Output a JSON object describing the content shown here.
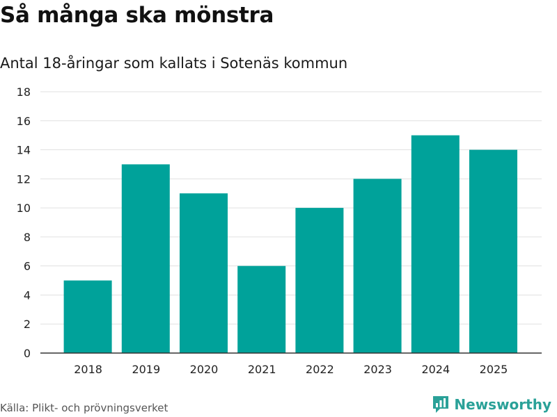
{
  "header": {
    "title": "Så många ska mönstra",
    "subtitle": "Antal 18-åringar som kallats i Sotenäs kommun"
  },
  "footer": {
    "source": "Källa: Plikt- och prövningsverket",
    "brand": "Newsworthy",
    "brand_icon": "newsworthy-logo-icon"
  },
  "colors": {
    "bar": "#00a29a",
    "grid": "#e0e0e0",
    "axis": "#333333",
    "brand": "#2aa198"
  },
  "chart_data": {
    "type": "bar",
    "title": "Så många ska mönstra",
    "subtitle": "Antal 18-åringar som kallats i Sotenäs kommun",
    "xlabel": "",
    "ylabel": "",
    "categories": [
      "2018",
      "2019",
      "2020",
      "2021",
      "2022",
      "2023",
      "2024",
      "2025"
    ],
    "values": [
      5,
      13,
      11,
      6,
      10,
      12,
      15,
      14
    ],
    "ylim": [
      0,
      18
    ],
    "yticks": [
      0,
      2,
      4,
      6,
      8,
      10,
      12,
      14,
      16,
      18
    ],
    "grid": true,
    "legend": "none"
  }
}
